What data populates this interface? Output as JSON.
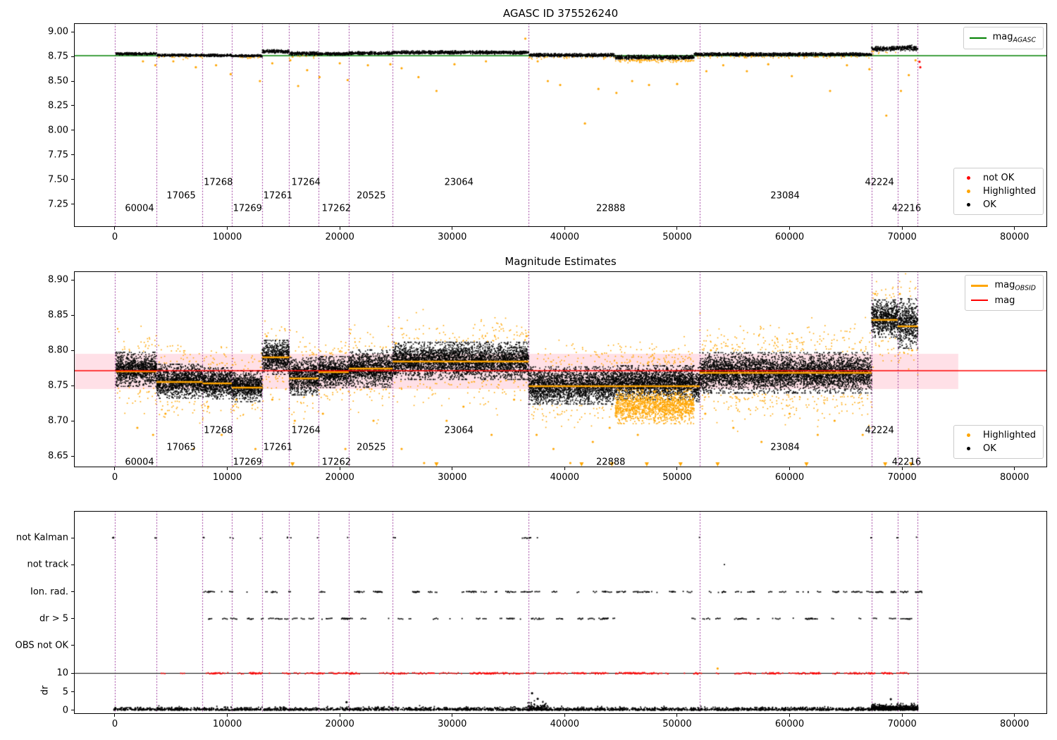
{
  "colors": {
    "ok": "#000000",
    "highlighted": "#ffa500",
    "not_ok": "#ff0000",
    "mag_agasc": "#008000",
    "mag": "#ff0000",
    "boundary": "#800080",
    "band": "rgba(255,0,60,0.12)",
    "spine": "#000000"
  },
  "chart_data": [
    {
      "type": "scatter",
      "title": "AGASC ID 375526240",
      "xlim": [
        -3634,
        82900
      ],
      "ylim": [
        7.021,
        9.086
      ],
      "xticks": [
        0,
        10000,
        20000,
        30000,
        40000,
        50000,
        60000,
        70000,
        80000
      ],
      "yticks": [
        9.0,
        8.75,
        8.5,
        8.25,
        8.0,
        7.75,
        7.5,
        7.25
      ],
      "ytick_decimals": 2,
      "boundaries": [
        0,
        3700,
        7800,
        10400,
        13100,
        15500,
        18100,
        20800,
        24700,
        36800,
        52000,
        67300,
        69600,
        71400
      ],
      "hlines": [
        {
          "y": 8.757,
          "color": "mag_agasc",
          "lw": 1.5,
          "z": "under"
        }
      ],
      "point_density": 0.08,
      "clouds": [
        {
          "x0": 100,
          "x1": 3700,
          "mean": 8.776,
          "spread": 0.006
        },
        {
          "x0": 3700,
          "x1": 7800,
          "mean": 8.762,
          "spread": 0.006,
          "fringe": "bottom"
        },
        {
          "x0": 7800,
          "x1": 10400,
          "mean": 8.76,
          "spread": 0.006
        },
        {
          "x0": 10400,
          "x1": 13100,
          "mean": 8.756,
          "spread": 0.006,
          "fringe": "bottom"
        },
        {
          "x0": 13100,
          "x1": 15500,
          "mean": 8.8,
          "spread": 0.008
        },
        {
          "x0": 15500,
          "x1": 18100,
          "mean": 8.778,
          "spread": 0.009,
          "fringe": "bottom"
        },
        {
          "x0": 18100,
          "x1": 20800,
          "mean": 8.775,
          "spread": 0.007
        },
        {
          "x0": 20800,
          "x1": 24700,
          "mean": 8.783,
          "spread": 0.007
        },
        {
          "x0": 24700,
          "x1": 36800,
          "mean": 8.79,
          "spread": 0.008
        },
        {
          "x0": 36800,
          "x1": 44500,
          "mean": 8.763,
          "spread": 0.008,
          "fringe": "bottom"
        },
        {
          "x0": 44500,
          "x1": 51500,
          "mean": 8.74,
          "spread": 0.01,
          "fringe": "bottom",
          "fmul": 4
        },
        {
          "x0": 51500,
          "x1": 67300,
          "mean": 8.77,
          "spread": 0.008,
          "fringe": "bottom"
        },
        {
          "x0": 67300,
          "x1": 69600,
          "mean": 8.828,
          "spread": 0.011,
          "fringe": "bottom"
        },
        {
          "x0": 69600,
          "x1": 71400,
          "mean": 8.836,
          "spread": 0.013
        }
      ],
      "outliers_highlighted": [
        [
          2500,
          8.7
        ],
        [
          3600,
          8.66
        ],
        [
          5200,
          8.7
        ],
        [
          7200,
          8.64
        ],
        [
          9000,
          8.66
        ],
        [
          10300,
          8.57
        ],
        [
          12900,
          8.5
        ],
        [
          14000,
          8.68
        ],
        [
          15600,
          8.71
        ],
        [
          16300,
          8.45
        ],
        [
          17100,
          8.61
        ],
        [
          18200,
          8.54
        ],
        [
          20000,
          8.68
        ],
        [
          20700,
          8.51
        ],
        [
          22500,
          8.66
        ],
        [
          24500,
          8.67
        ],
        [
          25500,
          8.63
        ],
        [
          27000,
          8.54
        ],
        [
          28600,
          8.4
        ],
        [
          30200,
          8.67
        ],
        [
          33000,
          8.7
        ],
        [
          36500,
          8.93
        ],
        [
          37600,
          8.7
        ],
        [
          38500,
          8.5
        ],
        [
          39600,
          8.46
        ],
        [
          41800,
          8.07
        ],
        [
          43000,
          8.42
        ],
        [
          44600,
          8.38
        ],
        [
          46000,
          8.5
        ],
        [
          47500,
          8.46
        ],
        [
          50000,
          8.47
        ],
        [
          52600,
          8.6
        ],
        [
          54100,
          8.66
        ],
        [
          56200,
          8.6
        ],
        [
          58100,
          8.67
        ],
        [
          60200,
          8.55
        ],
        [
          63600,
          8.4
        ],
        [
          65100,
          8.66
        ],
        [
          67100,
          8.62
        ],
        [
          68600,
          8.15
        ],
        [
          69900,
          8.4
        ],
        [
          70600,
          8.56
        ],
        [
          71200,
          8.71
        ]
      ],
      "points_not_ok": [
        [
          71550,
          8.695
        ],
        [
          71620,
          8.64
        ]
      ],
      "obsid_labels": [
        {
          "text": "60004",
          "x": 900,
          "y": 7.21
        },
        {
          "text": "17065",
          "x": 4600,
          "y": 7.335
        },
        {
          "text": "17268",
          "x": 7900,
          "y": 7.47
        },
        {
          "text": "17269",
          "x": 10500,
          "y": 7.21
        },
        {
          "text": "17261",
          "x": 13200,
          "y": 7.335
        },
        {
          "text": "17264",
          "x": 15700,
          "y": 7.47
        },
        {
          "text": "17262",
          "x": 18400,
          "y": 7.21
        },
        {
          "text": "20525",
          "x": 21500,
          "y": 7.335
        },
        {
          "text": "23064",
          "x": 29300,
          "y": 7.47
        },
        {
          "text": "22888",
          "x": 42800,
          "y": 7.21
        },
        {
          "text": "23084",
          "x": 58300,
          "y": 7.335
        },
        {
          "text": "42224",
          "x": 66700,
          "y": 7.47
        },
        {
          "text": "42216",
          "x": 69100,
          "y": 7.21
        }
      ],
      "legends": [
        {
          "dy": 5,
          "items": [
            {
              "marker": "line",
              "lw": 2,
              "color": "mag_agasc",
              "text": "mag",
              "sub": "AGASC"
            }
          ]
        },
        {
          "dy": 205,
          "items": [
            {
              "marker": "dot",
              "color": "not_ok",
              "text": "not OK"
            },
            {
              "marker": "dot",
              "color": "highlighted",
              "text": "Highlighted"
            },
            {
              "marker": "dot",
              "color": "ok",
              "text": "OK"
            }
          ]
        }
      ]
    },
    {
      "type": "scatter",
      "title": "Magnitude Estimates",
      "xlim": [
        -3634,
        82900
      ],
      "ylim": [
        8.634,
        8.912
      ],
      "xticks": [
        0,
        10000,
        20000,
        30000,
        40000,
        50000,
        60000,
        70000,
        80000
      ],
      "yticks": [
        8.9,
        8.85,
        8.8,
        8.75,
        8.7,
        8.65
      ],
      "ytick_decimals": 2,
      "boundaries": [
        0,
        3700,
        7800,
        10400,
        13100,
        15500,
        18100,
        20800,
        24700,
        36800,
        52000,
        67300,
        69600,
        71400
      ],
      "band": {
        "y0": 8.745,
        "y1": 8.795,
        "x1": 75000
      },
      "hlines": [
        {
          "y": 8.771,
          "color": "mag",
          "lw": 1.5,
          "z": "over"
        }
      ],
      "obsid_lines": [
        [
          100,
          3700,
          8.77
        ],
        [
          3700,
          7800,
          8.755
        ],
        [
          7800,
          10400,
          8.753
        ],
        [
          10400,
          13100,
          8.747
        ],
        [
          13100,
          15500,
          8.79
        ],
        [
          15500,
          18100,
          8.76
        ],
        [
          18100,
          20800,
          8.769
        ],
        [
          20800,
          24700,
          8.774
        ],
        [
          24700,
          36800,
          8.784
        ],
        [
          36800,
          52000,
          8.749
        ],
        [
          52000,
          67300,
          8.768
        ],
        [
          67300,
          69600,
          8.843
        ],
        [
          69600,
          71400,
          8.834
        ]
      ],
      "point_density": 0.3,
      "clouds": [
        {
          "x0": 100,
          "x1": 3700,
          "mean": 8.773,
          "spread": 0.011,
          "fringe": "both"
        },
        {
          "x0": 3700,
          "x1": 7800,
          "mean": 8.756,
          "spread": 0.011,
          "fringe": "both"
        },
        {
          "x0": 7800,
          "x1": 10400,
          "mean": 8.753,
          "spread": 0.01,
          "fringe": "both"
        },
        {
          "x0": 10400,
          "x1": 13100,
          "mean": 8.749,
          "spread": 0.01,
          "fringe": "both"
        },
        {
          "x0": 13100,
          "x1": 15500,
          "mean": 8.79,
          "spread": 0.011,
          "fringe": "both"
        },
        {
          "x0": 15500,
          "x1": 18100,
          "mean": 8.763,
          "spread": 0.012,
          "fringe": "both"
        },
        {
          "x0": 18100,
          "x1": 20800,
          "mean": 8.769,
          "spread": 0.01,
          "fringe": "both"
        },
        {
          "x0": 20800,
          "x1": 24700,
          "mean": 8.774,
          "spread": 0.012,
          "fringe": "both"
        },
        {
          "x0": 24700,
          "x1": 36800,
          "mean": 8.785,
          "spread": 0.012,
          "fringe": "both"
        },
        {
          "x0": 36800,
          "x1": 44500,
          "mean": 8.75,
          "spread": 0.012,
          "fringe": "both"
        },
        {
          "x0": 44500,
          "x1": 51500,
          "mean": 8.754,
          "spread": 0.011,
          "fringe": "top"
        },
        {
          "x0": 44500,
          "x1": 51500,
          "mean": 8.72,
          "spread": 0.011,
          "color": "highlighted",
          "dmul": 0.7
        },
        {
          "x0": 51500,
          "x1": 52000,
          "mean": 8.751,
          "spread": 0.011
        },
        {
          "x0": 52000,
          "x1": 67300,
          "mean": 8.768,
          "spread": 0.013,
          "fringe": "both",
          "fmul": 1.5
        },
        {
          "x0": 67300,
          "x1": 69600,
          "mean": 8.845,
          "spread": 0.012,
          "fringe": "both"
        },
        {
          "x0": 69600,
          "x1": 71400,
          "mean": 8.838,
          "spread": 0.016,
          "fringe": "both"
        }
      ],
      "outliers_highlighted": [
        [
          2000,
          8.69
        ],
        [
          3400,
          8.68
        ],
        [
          4500,
          8.71
        ],
        [
          7000,
          8.66
        ],
        [
          8300,
          8.72
        ],
        [
          9500,
          8.68
        ],
        [
          10800,
          8.73
        ],
        [
          12500,
          8.66
        ],
        [
          13500,
          8.82
        ],
        [
          14000,
          8.73
        ],
        [
          16000,
          8.7
        ],
        [
          18500,
          8.71
        ],
        [
          20500,
          8.66
        ],
        [
          23000,
          8.7
        ],
        [
          25000,
          8.81
        ],
        [
          25500,
          8.66
        ],
        [
          27500,
          8.64
        ],
        [
          29500,
          8.7
        ],
        [
          31000,
          8.72
        ],
        [
          33500,
          8.68
        ],
        [
          35500,
          8.73
        ],
        [
          36600,
          8.82
        ],
        [
          37500,
          8.68
        ],
        [
          39000,
          8.66
        ],
        [
          40500,
          8.64
        ],
        [
          42500,
          8.67
        ],
        [
          44000,
          8.69
        ],
        [
          46500,
          8.68
        ],
        [
          48000,
          8.7
        ],
        [
          52500,
          8.71
        ],
        [
          53000,
          8.8
        ],
        [
          55000,
          8.69
        ],
        [
          57500,
          8.67
        ],
        [
          60000,
          8.71
        ],
        [
          62500,
          8.68
        ],
        [
          64000,
          8.7
        ],
        [
          66500,
          8.68
        ],
        [
          67600,
          8.88
        ],
        [
          69800,
          8.88
        ],
        [
          70900,
          8.8
        ]
      ],
      "clipped_below_x": [
        15800,
        28600,
        41500,
        44200,
        47300,
        50300,
        53600,
        61500,
        68500,
        70800
      ],
      "obsid_labels": [
        {
          "text": "60004",
          "x": 900,
          "y": 8.641
        },
        {
          "text": "17065",
          "x": 4600,
          "y": 8.662
        },
        {
          "text": "17268",
          "x": 7900,
          "y": 8.686
        },
        {
          "text": "17269",
          "x": 10500,
          "y": 8.641
        },
        {
          "text": "17261",
          "x": 13200,
          "y": 8.662
        },
        {
          "text": "17264",
          "x": 15700,
          "y": 8.686
        },
        {
          "text": "17262",
          "x": 18400,
          "y": 8.641
        },
        {
          "text": "20525",
          "x": 21500,
          "y": 8.662
        },
        {
          "text": "23064",
          "x": 29300,
          "y": 8.686
        },
        {
          "text": "22888",
          "x": 42800,
          "y": 8.641
        },
        {
          "text": "23084",
          "x": 58300,
          "y": 8.662
        },
        {
          "text": "42224",
          "x": 66700,
          "y": 8.686
        },
        {
          "text": "42216",
          "x": 69100,
          "y": 8.641
        }
      ],
      "legends": [
        {
          "dy": 5,
          "items": [
            {
              "marker": "line",
              "lw": 3,
              "color": "highlighted",
              "text": "mag",
              "sub": "OBSID"
            },
            {
              "marker": "line",
              "lw": 2,
              "color": "mag",
              "text": "mag"
            }
          ]
        },
        {
          "dy": 218,
          "items": [
            {
              "marker": "dot",
              "color": "highlighted",
              "text": "Highlighted"
            },
            {
              "marker": "dot",
              "color": "ok",
              "text": "OK"
            }
          ]
        }
      ]
    },
    {
      "type": "flags",
      "title": "",
      "xlim": [
        -3634,
        82900
      ],
      "xticks": [
        0,
        10000,
        20000,
        30000,
        40000,
        50000,
        60000,
        70000,
        80000
      ],
      "boundaries": [
        0,
        3700,
        7800,
        10400,
        13100,
        15500,
        18100,
        20800,
        24700,
        36800,
        52000,
        67300,
        69600,
        71400
      ],
      "rows": [
        {
          "label": "not Kalman",
          "y": 0.132
        },
        {
          "label": "not track",
          "y": 0.264
        },
        {
          "label": "Ion. rad.",
          "y": 0.399
        },
        {
          "label": "dr > 5",
          "y": 0.531
        },
        {
          "label": "OBS not OK",
          "y": 0.663
        }
      ],
      "dr_axis_label": "dr",
      "dr_ticks": [
        {
          "label": "10",
          "v": 10
        },
        {
          "label": "5",
          "v": 5
        },
        {
          "label": "0",
          "v": 0
        }
      ],
      "dr_map": {
        "y_at_0": 0.982,
        "y_per_unit": 0.0182
      },
      "clip_line_dr": 10,
      "flags": {
        "not_kalman_extra": [
          {
            "x": 36900,
            "n": 9,
            "spread": 700
          },
          {
            "x": 24900,
            "n": 2,
            "spread": 150
          }
        ],
        "not_track_x": [
          54200
        ],
        "ion_rad": {
          "x0": 7900,
          "x1": 71300,
          "clusters": 95
        },
        "dr_gt5": {
          "x0": 7900,
          "x1": 71300,
          "clusters": 75
        },
        "dr_clip_red": {
          "x0": 0,
          "x1": 71300,
          "clusters": 170
        },
        "dr_base": {
          "x0": -100,
          "x1": 71400,
          "n": 2800
        },
        "dr_elevated": {
          "x0": 67300,
          "x1": 71400,
          "n": 600
        },
        "dr_bump": {
          "x0": 36700,
          "x1": 38500,
          "n": 120
        },
        "extra_points": [
          {
            "x": 53600,
            "dr": 11.3,
            "color": "highlighted"
          },
          {
            "x": 37100,
            "dr": 4.6,
            "color": "ok"
          },
          {
            "x": 37600,
            "dr": 3.1,
            "color": "ok"
          },
          {
            "x": 20600,
            "dr": 2.2,
            "color": "ok"
          },
          {
            "x": 69000,
            "dr": 3.0,
            "color": "ok"
          }
        ]
      }
    }
  ]
}
